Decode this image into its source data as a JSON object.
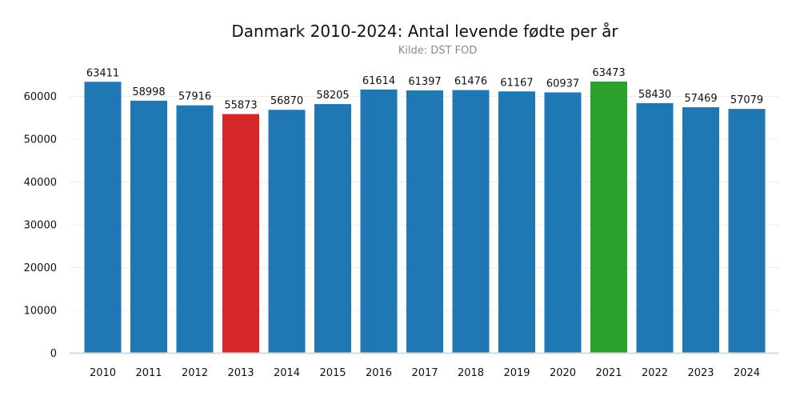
{
  "chart_data": {
    "type": "bar",
    "title": "Danmark 2010-2024: Antal levende fødte per år",
    "subtitle": "Kilde: DST FOD",
    "xlabel": "",
    "ylabel": "",
    "categories": [
      "2010",
      "2011",
      "2012",
      "2013",
      "2014",
      "2015",
      "2016",
      "2017",
      "2018",
      "2019",
      "2020",
      "2021",
      "2022",
      "2023",
      "2024"
    ],
    "values": [
      63411,
      58998,
      57916,
      55873,
      56870,
      58205,
      61614,
      61397,
      61476,
      61167,
      60937,
      63473,
      58430,
      57469,
      57079
    ],
    "data_labels": [
      "63411",
      "58998",
      "57916",
      "55873",
      "56870",
      "58205",
      "61614",
      "61397",
      "61476",
      "61167",
      "60937",
      "63473",
      "58430",
      "57469",
      "57079"
    ],
    "bar_colors": [
      "#1f77b4",
      "#1f77b4",
      "#1f77b4",
      "#d62728",
      "#1f77b4",
      "#1f77b4",
      "#1f77b4",
      "#1f77b4",
      "#1f77b4",
      "#1f77b4",
      "#1f77b4",
      "#2ca02c",
      "#1f77b4",
      "#1f77b4",
      "#1f77b4"
    ],
    "ylim": [
      0,
      65000
    ],
    "yticks": [
      0,
      10000,
      20000,
      30000,
      40000,
      50000,
      60000
    ],
    "ytick_labels": [
      "0",
      "10000",
      "20000",
      "30000",
      "40000",
      "50000",
      "60000"
    ],
    "grid": "horizontal",
    "legend": "none"
  }
}
